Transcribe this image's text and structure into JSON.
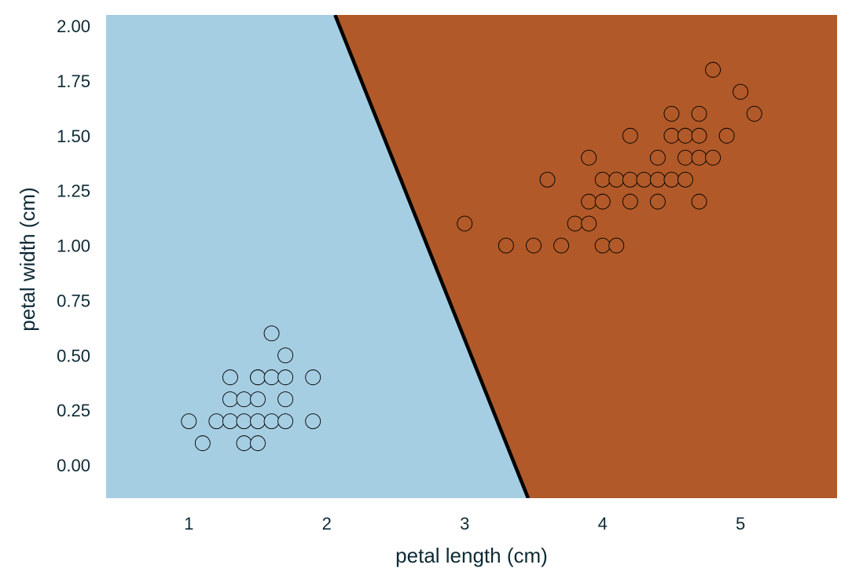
{
  "chart_data": {
    "type": "scatter",
    "title": "",
    "xlabel": "petal length (cm)",
    "ylabel": "petal width (cm)",
    "xlim": [
      0.4,
      5.7
    ],
    "ylim": [
      -0.15,
      2.05
    ],
    "xticks": [
      1,
      2,
      3,
      4,
      5
    ],
    "xtick_labels": [
      "1",
      "2",
      "3",
      "4",
      "5"
    ],
    "yticks": [
      0.0,
      0.25,
      0.5,
      0.75,
      1.0,
      1.25,
      1.5,
      1.75,
      2.0
    ],
    "ytick_labels": [
      "0.00",
      "0.25",
      "0.50",
      "0.75",
      "1.00",
      "1.25",
      "1.50",
      "1.75",
      "2.00"
    ],
    "grid": false,
    "decision_boundary": {
      "points": [
        [
          2.06,
          2.05
        ],
        [
          3.46,
          -0.15
        ]
      ],
      "color": "#000000"
    },
    "regions": [
      {
        "side": "left",
        "color": "#a6cee3"
      },
      {
        "side": "right",
        "color": "#b15928"
      }
    ],
    "series": [
      {
        "color": "#a6cee3",
        "x": [
          1.0,
          1.1,
          1.2,
          1.3,
          1.3,
          1.3,
          1.4,
          1.4,
          1.4,
          1.5,
          1.5,
          1.5,
          1.5,
          1.5,
          1.6,
          1.6,
          1.6,
          1.7,
          1.7,
          1.7,
          1.7,
          1.9,
          1.9
        ],
        "y": [
          0.2,
          0.1,
          0.2,
          0.2,
          0.3,
          0.4,
          0.1,
          0.2,
          0.3,
          0.1,
          0.2,
          0.3,
          0.4,
          0.4,
          0.2,
          0.4,
          0.6,
          0.2,
          0.3,
          0.4,
          0.5,
          0.2,
          0.4
        ]
      },
      {
        "color": "#b15928",
        "x": [
          3.0,
          3.3,
          3.5,
          3.6,
          3.7,
          3.8,
          3.9,
          3.9,
          3.9,
          4.0,
          4.0,
          4.0,
          4.1,
          4.1,
          4.2,
          4.2,
          4.2,
          4.3,
          4.4,
          4.4,
          4.4,
          4.5,
          4.5,
          4.5,
          4.6,
          4.6,
          4.6,
          4.7,
          4.7,
          4.7,
          4.7,
          4.8,
          4.8,
          4.9,
          5.0,
          5.1
        ],
        "y": [
          1.1,
          1.0,
          1.0,
          1.3,
          1.0,
          1.1,
          1.1,
          1.2,
          1.4,
          1.0,
          1.2,
          1.3,
          1.0,
          1.3,
          1.2,
          1.3,
          1.5,
          1.3,
          1.2,
          1.3,
          1.4,
          1.3,
          1.5,
          1.6,
          1.3,
          1.4,
          1.5,
          1.2,
          1.4,
          1.5,
          1.6,
          1.4,
          1.8,
          1.5,
          1.7,
          1.6
        ]
      }
    ]
  }
}
